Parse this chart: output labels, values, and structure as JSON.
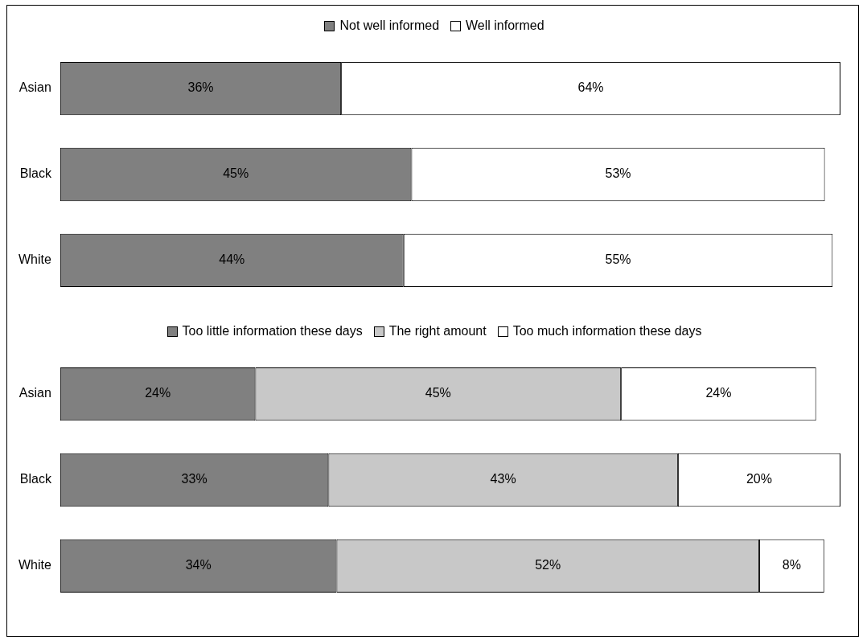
{
  "chart_data": [
    {
      "type": "bar",
      "orientation": "horizontal",
      "stacked": true,
      "legend": "top",
      "categories": [
        "Asian",
        "Black",
        "White"
      ],
      "series": [
        {
          "name": "Not well informed",
          "color": "#808080",
          "values": [
            36,
            45,
            44
          ],
          "value_labels": [
            "36%",
            "45%",
            "44%"
          ]
        },
        {
          "name": "Well informed",
          "color": "#ffffff",
          "values": [
            64,
            53,
            55
          ],
          "value_labels": [
            "64%",
            "53%",
            "55%"
          ]
        }
      ]
    },
    {
      "type": "bar",
      "orientation": "horizontal",
      "stacked": true,
      "legend": "top",
      "categories": [
        "Asian",
        "Black",
        "White"
      ],
      "series": [
        {
          "name": "Too little information these days",
          "color": "#808080",
          "values": [
            24,
            33,
            34
          ],
          "value_labels": [
            "24%",
            "33%",
            "34%"
          ]
        },
        {
          "name": "The right amount",
          "color": "#c8c8c8",
          "values": [
            45,
            43,
            52
          ],
          "value_labels": [
            "45%",
            "43%",
            "52%"
          ]
        },
        {
          "name": "Too much information these days",
          "color": "#ffffff",
          "values": [
            24,
            20,
            8
          ],
          "value_labels": [
            "24%",
            "20%",
            "8%"
          ]
        }
      ]
    }
  ]
}
